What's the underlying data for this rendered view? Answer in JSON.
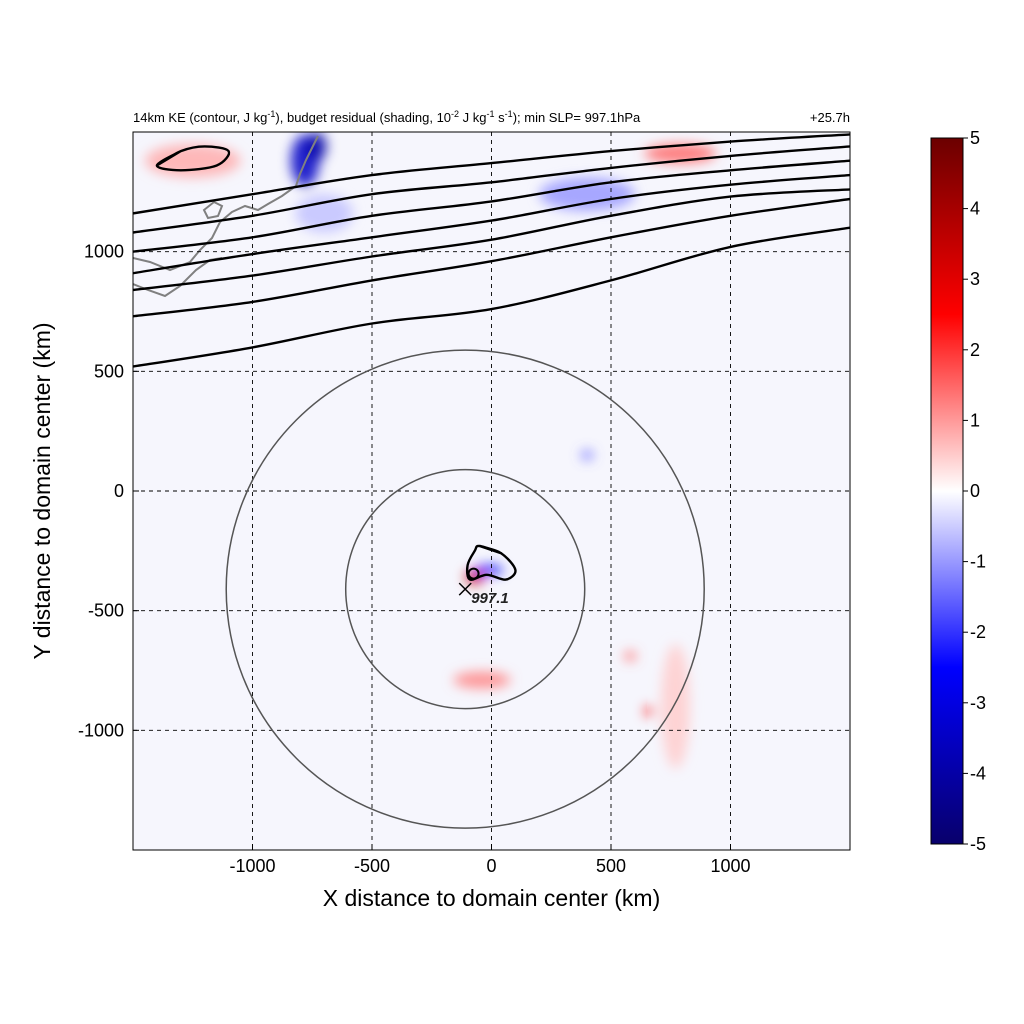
{
  "title": {
    "left_text_parts": [
      "14km KE (contour, J kg",
      "-1",
      "), budget residual (shading, 10",
      "-2",
      " J kg",
      "-1",
      " s",
      "-1",
      "); min SLP= 997.1hPa"
    ],
    "right_text": "+25.7h"
  },
  "chart_data": {
    "type": "heatmap",
    "xlabel": "X distance to domain center (km)",
    "ylabel": "Y distance to domain center (km)",
    "xlim": [
      -1500,
      1500
    ],
    "ylim": [
      -1500,
      1500
    ],
    "x_ticks": [
      -1000,
      -500,
      0,
      500,
      1000
    ],
    "y_ticks": [
      -1000,
      -500,
      0,
      500,
      1000
    ],
    "x_tick_labels": [
      "-1000",
      "-500",
      "0",
      "500",
      "1000"
    ],
    "y_tick_labels": [
      "-1000",
      "-500",
      "0",
      "500",
      "1000"
    ],
    "grid": true,
    "colorbar": {
      "min": -5,
      "max": 5,
      "ticks": [
        5,
        4,
        3,
        2,
        1,
        0,
        -1,
        -2,
        -3,
        -4,
        -5
      ],
      "tick_labels": [
        "5",
        "4",
        "3",
        "2",
        "1",
        "0",
        "-1",
        "-2",
        "-3",
        "-4",
        "-5"
      ],
      "colors": [
        "#08006b",
        "#0000ff",
        "#ffffff",
        "#ff0000",
        "#6b0000"
      ]
    },
    "storm_center": {
      "x": -110,
      "y": -410,
      "min_slp_label": "997.1"
    },
    "radius_rings_km": [
      500,
      1000
    ],
    "ke_contours_xy": [
      [
        [
          -1500,
          520
        ],
        [
          -1000,
          600
        ],
        [
          -500,
          700
        ],
        [
          0,
          760
        ],
        [
          500,
          880
        ],
        [
          1000,
          1020
        ],
        [
          1500,
          1100
        ]
      ],
      [
        [
          -1500,
          730
        ],
        [
          -1000,
          790
        ],
        [
          -500,
          880
        ],
        [
          0,
          960
        ],
        [
          500,
          1060
        ],
        [
          1000,
          1150
        ],
        [
          1500,
          1220
        ]
      ],
      [
        [
          -1500,
          840
        ],
        [
          -1000,
          900
        ],
        [
          -500,
          980
        ],
        [
          0,
          1050
        ],
        [
          500,
          1150
        ],
        [
          1000,
          1230
        ],
        [
          1500,
          1260
        ]
      ],
      [
        [
          -1500,
          910
        ],
        [
          -1000,
          990
        ],
        [
          -500,
          1060
        ],
        [
          0,
          1130
        ],
        [
          500,
          1220
        ],
        [
          1000,
          1280
        ],
        [
          1500,
          1320
        ]
      ],
      [
        [
          -1500,
          1000
        ],
        [
          -1000,
          1060
        ],
        [
          -500,
          1150
        ],
        [
          0,
          1210
        ],
        [
          500,
          1290
        ],
        [
          1000,
          1340
        ],
        [
          1500,
          1380
        ]
      ],
      [
        [
          -1500,
          1080
        ],
        [
          -1000,
          1150
        ],
        [
          -500,
          1240
        ],
        [
          0,
          1290
        ],
        [
          500,
          1350
        ],
        [
          1000,
          1400
        ],
        [
          1500,
          1440
        ]
      ],
      [
        [
          -1500,
          1160
        ],
        [
          -1000,
          1240
        ],
        [
          -500,
          1320
        ],
        [
          0,
          1370
        ],
        [
          500,
          1420
        ],
        [
          1000,
          1460
        ],
        [
          1500,
          1490
        ]
      ]
    ],
    "ke_closed_contours_xy": [
      [
        [
          -50,
          -230
        ],
        [
          40,
          -260
        ],
        [
          100,
          -330
        ],
        [
          60,
          -370
        ],
        [
          -20,
          -350
        ],
        [
          -90,
          -370
        ],
        [
          -100,
          -310
        ],
        [
          -70,
          -250
        ]
      ],
      [
        [
          -1400,
          1360
        ],
        [
          -1300,
          1420
        ],
        [
          -1200,
          1440
        ],
        [
          -1100,
          1420
        ],
        [
          -1150,
          1360
        ],
        [
          -1300,
          1340
        ]
      ]
    ],
    "residual_features": [
      {
        "x": -780,
        "y": 1380,
        "rx": 60,
        "ry": 110,
        "value": -3.5
      },
      {
        "x": -730,
        "y": 1440,
        "rx": 40,
        "ry": 60,
        "value": -4
      },
      {
        "x": -1250,
        "y": 1380,
        "rx": 200,
        "ry": 70,
        "value": 0.8
      },
      {
        "x": -70,
        "y": -360,
        "rx": 40,
        "ry": 30,
        "value": 3.5
      },
      {
        "x": -10,
        "y": -330,
        "rx": 60,
        "ry": 20,
        "value": -2.5
      },
      {
        "x": -40,
        "y": -790,
        "rx": 120,
        "ry": 35,
        "value": 1.2
      },
      {
        "x": 660,
        "y": -920,
        "rx": 20,
        "ry": 20,
        "value": 2.5
      },
      {
        "x": 580,
        "y": -690,
        "rx": 25,
        "ry": 20,
        "value": 1.5
      },
      {
        "x": 400,
        "y": 1240,
        "rx": 200,
        "ry": 70,
        "value": -1
      },
      {
        "x": 790,
        "y": 1410,
        "rx": 150,
        "ry": 40,
        "value": 1.5
      },
      {
        "x": -700,
        "y": 1160,
        "rx": 120,
        "ry": 80,
        "value": -0.6
      },
      {
        "x": 400,
        "y": 150,
        "rx": 25,
        "ry": 20,
        "value": -1.5
      },
      {
        "x": 770,
        "y": -900,
        "rx": 60,
        "ry": 260,
        "value": 0.5
      }
    ]
  }
}
